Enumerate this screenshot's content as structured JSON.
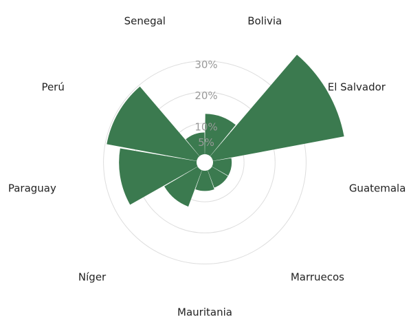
{
  "chart_data": {
    "type": "polar_bar",
    "categories": [
      "Bolivia",
      "El Salvador",
      "Guatemala",
      "Marruecos",
      "Mauritania",
      "Níger",
      "Paraguay",
      "Perú",
      "Senegal"
    ],
    "values": [
      13,
      43,
      6,
      6,
      6.5,
      12.5,
      25,
      29.5,
      7
    ],
    "color": "#3b7a4f",
    "rlim": [
      0,
      35
    ],
    "rticks": [
      {
        "value": 5,
        "label": "5%"
      },
      {
        "value": 10,
        "label": "10%"
      },
      {
        "value": 20,
        "label": "20%"
      },
      {
        "value": 30,
        "label": "30%"
      }
    ],
    "grid": true
  }
}
